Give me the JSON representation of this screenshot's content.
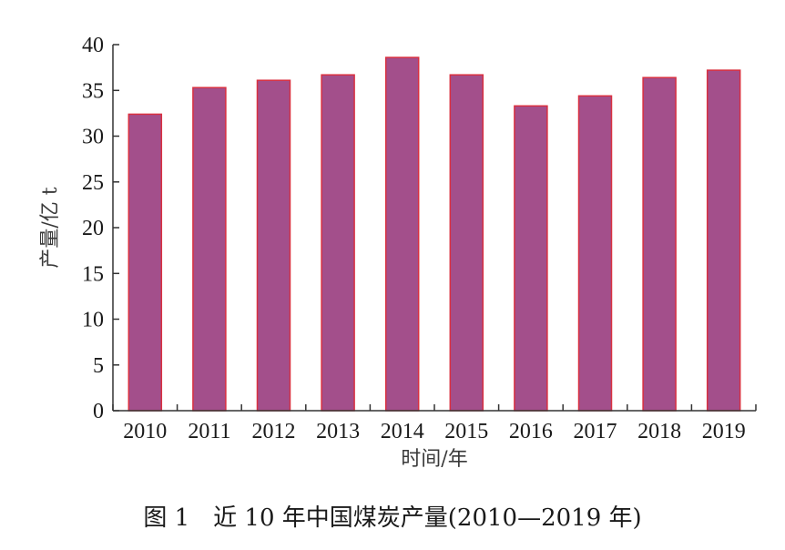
{
  "chart_data": {
    "type": "bar",
    "categories": [
      "2010",
      "2011",
      "2012",
      "2013",
      "2014",
      "2015",
      "2016",
      "2017",
      "2018",
      "2019"
    ],
    "values": [
      32.4,
      35.3,
      36.1,
      36.7,
      38.6,
      36.7,
      33.3,
      34.4,
      36.4,
      37.2
    ],
    "title": "",
    "xlabel": "时间/年",
    "ylabel": "产量/亿 t",
    "ylim": [
      0,
      40
    ],
    "yticks": [
      "0",
      "5",
      "10",
      "15",
      "20",
      "25",
      "30",
      "35",
      "40"
    ],
    "grid": false,
    "bar_fill": "#a34f8b",
    "bar_stroke": "#d93040",
    "axis_color": "#333333"
  },
  "caption": "图 1　近 10 年中国煤炭产量(2010—2019 年)"
}
